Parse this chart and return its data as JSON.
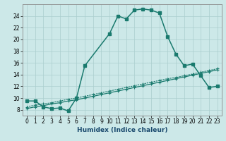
{
  "xlabel": "Humidex (Indice chaleur)",
  "background_color": "#cce8e8",
  "grid_color": "#aacece",
  "line_color": "#1a7a6e",
  "xlim": [
    -0.5,
    23.5
  ],
  "ylim": [
    7.0,
    26.0
  ],
  "xticks": [
    0,
    1,
    2,
    3,
    4,
    5,
    6,
    7,
    8,
    9,
    10,
    11,
    12,
    13,
    14,
    15,
    16,
    17,
    18,
    19,
    20,
    21,
    22,
    23
  ],
  "yticks": [
    8,
    10,
    12,
    14,
    16,
    18,
    20,
    22,
    24
  ],
  "curve_main_x": [
    0,
    1,
    2,
    3,
    4,
    5,
    6,
    7,
    10,
    11,
    12,
    13,
    14,
    15,
    16,
    17,
    18,
    19,
    20,
    21,
    22,
    23
  ],
  "curve_main_y": [
    9.5,
    9.5,
    8.5,
    8.2,
    8.3,
    7.8,
    10.0,
    15.5,
    21.0,
    24.0,
    23.5,
    25.0,
    25.2,
    25.0,
    24.5,
    20.5,
    17.5,
    15.5,
    15.8,
    13.8,
    11.8,
    12.0
  ],
  "curve_dot_x": [
    0,
    1,
    2,
    3,
    4,
    5,
    6,
    7,
    8,
    9,
    10,
    11,
    12,
    13,
    14,
    15,
    16,
    17,
    18,
    19,
    20,
    21,
    22,
    23
  ],
  "curve_dot_y": [
    8.5,
    8.8,
    9.0,
    9.2,
    9.5,
    9.8,
    10.0,
    10.3,
    10.6,
    10.9,
    11.2,
    11.5,
    11.8,
    12.1,
    12.4,
    12.7,
    13.0,
    13.3,
    13.5,
    13.8,
    14.1,
    14.4,
    14.7,
    15.0
  ],
  "curve_solid_x": [
    0,
    1,
    2,
    3,
    4,
    5,
    6,
    7,
    8,
    9,
    10,
    11,
    12,
    13,
    14,
    15,
    16,
    17,
    18,
    19,
    20,
    21,
    22,
    23
  ],
  "curve_solid_y": [
    8.2,
    8.5,
    8.7,
    9.0,
    9.2,
    9.5,
    9.7,
    10.0,
    10.3,
    10.6,
    10.9,
    11.2,
    11.5,
    11.8,
    12.1,
    12.4,
    12.7,
    13.0,
    13.3,
    13.6,
    13.9,
    14.2,
    14.5,
    14.8
  ]
}
